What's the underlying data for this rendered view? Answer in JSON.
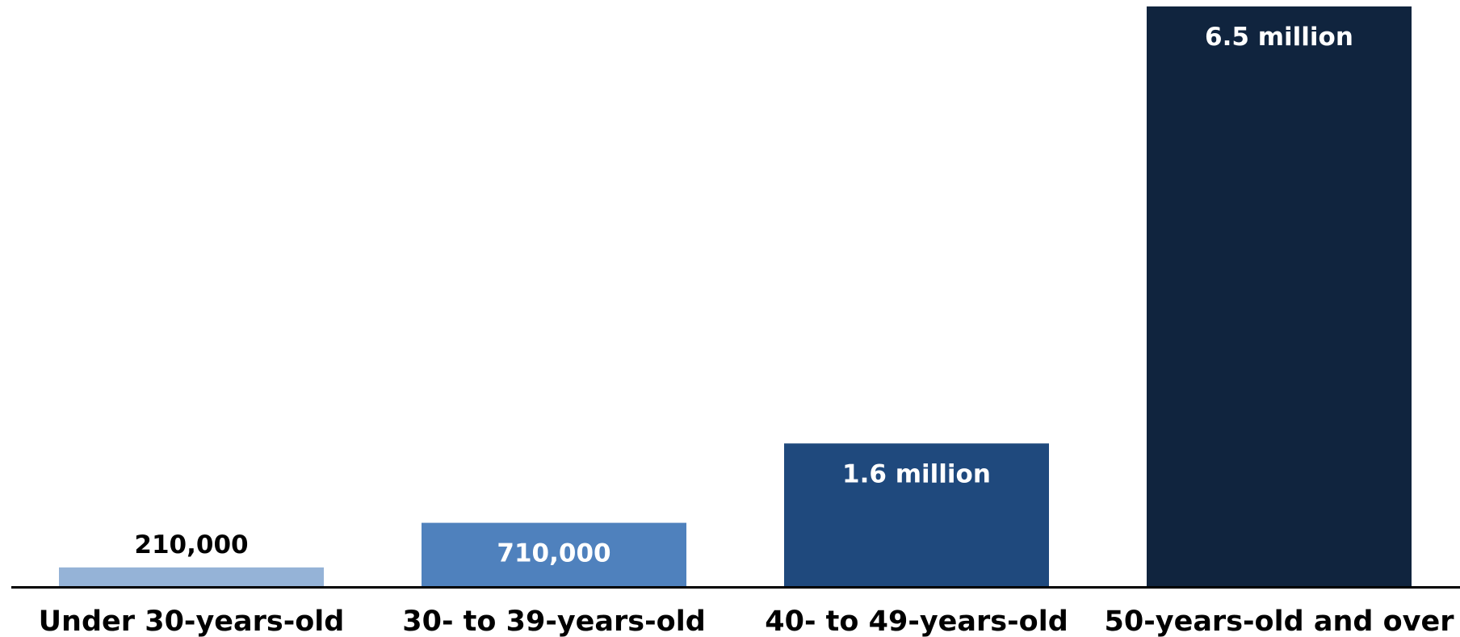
{
  "chart_data": {
    "type": "bar",
    "categories": [
      "Under 30-years-old",
      "30- to 39-years-old",
      "40- to 49-years-old",
      "50-years-old and over"
    ],
    "values": [
      210000,
      710000,
      1600000,
      6500000
    ],
    "data_labels": [
      "210,000",
      "710,000",
      "1.6 million",
      "6.5 million"
    ],
    "title": "",
    "xlabel": "",
    "ylabel": "",
    "ylim": [
      0,
      6500000
    ],
    "grid": false,
    "legend": "none",
    "colors": [
      "#95b3d7",
      "#4f81bd",
      "#1f497d",
      "#10243e"
    ],
    "label_colors": [
      "#000000",
      "#ffffff",
      "#ffffff",
      "#ffffff"
    ],
    "axis_color": "#000000"
  }
}
